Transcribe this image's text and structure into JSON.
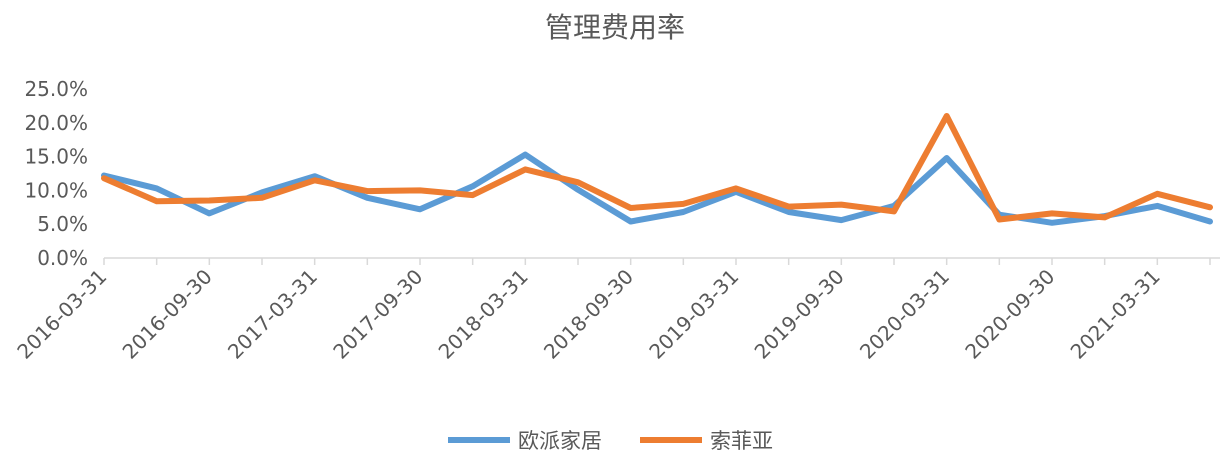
{
  "chart_data": {
    "type": "line",
    "title": "管理费用率",
    "xlabel": "",
    "ylabel": "",
    "ylim": [
      0,
      0.25
    ],
    "yticks": [
      "0.0%",
      "5.0%",
      "10.0%",
      "15.0%",
      "20.0%",
      "25.0%"
    ],
    "y_tick_values": [
      0,
      0.05,
      0.1,
      0.15,
      0.2,
      0.25
    ],
    "x": [
      "2016-03-31",
      "2016-06-30",
      "2016-09-30",
      "2016-12-31",
      "2017-03-31",
      "2017-06-30",
      "2017-09-30",
      "2017-12-31",
      "2018-03-31",
      "2018-06-30",
      "2018-09-30",
      "2018-12-31",
      "2019-03-31",
      "2019-06-30",
      "2019-09-30",
      "2019-12-31",
      "2020-03-31",
      "2020-06-30",
      "2020-09-30",
      "2020-12-31",
      "2021-03-31",
      "2021-06-30"
    ],
    "xtick_labels": [
      "2016-03-31",
      "2016-09-30",
      "2017-03-31",
      "2017-09-30",
      "2018-03-31",
      "2018-09-30",
      "2019-03-31",
      "2019-09-30",
      "2020-03-31",
      "2020-09-30",
      "2021-03-31"
    ],
    "grid": false,
    "legend_position": "bottom",
    "series": [
      {
        "name": "欧派家居",
        "color": "#5B9BD5",
        "values": [
          0.122,
          0.103,
          0.066,
          0.097,
          0.121,
          0.089,
          0.072,
          0.106,
          0.153,
          0.101,
          0.054,
          0.068,
          0.098,
          0.068,
          0.056,
          0.077,
          0.148,
          0.064,
          0.052,
          0.062,
          0.077,
          0.054
        ]
      },
      {
        "name": "索菲亚",
        "color": "#ED7D31",
        "values": [
          0.118,
          0.084,
          0.085,
          0.089,
          0.115,
          0.099,
          0.1,
          0.093,
          0.131,
          0.112,
          0.074,
          0.08,
          0.103,
          0.076,
          0.079,
          0.069,
          0.21,
          0.057,
          0.066,
          0.06,
          0.095,
          0.075
        ]
      }
    ]
  }
}
